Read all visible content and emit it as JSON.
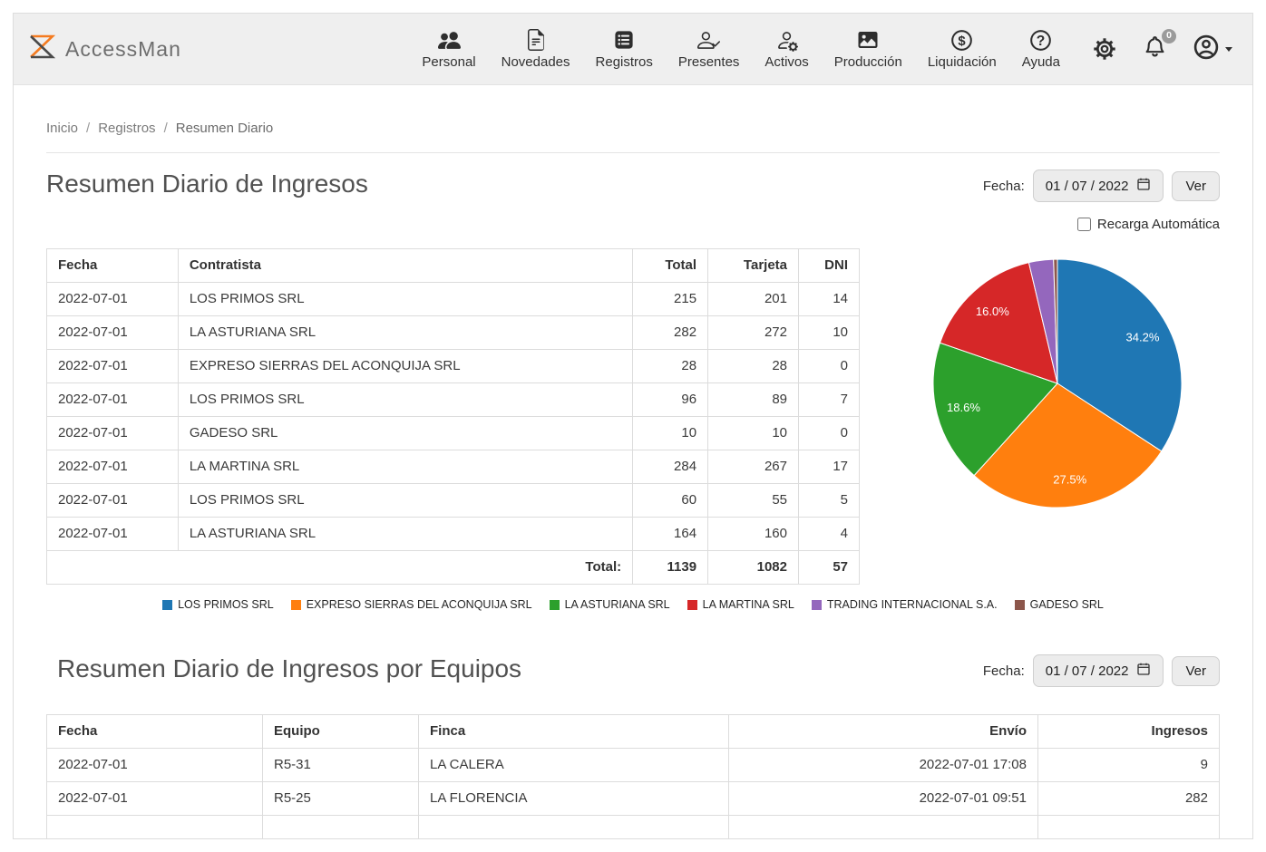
{
  "brand": {
    "name": "AccessMan"
  },
  "nav": {
    "items": [
      {
        "label": "Personal",
        "icon": "people-icon"
      },
      {
        "label": "Novedades",
        "icon": "file-text-icon"
      },
      {
        "label": "Registros",
        "icon": "list-square-icon"
      },
      {
        "label": "Presentes",
        "icon": "person-check-icon"
      },
      {
        "label": "Activos",
        "icon": "person-gear-icon"
      },
      {
        "label": "Producción",
        "icon": "image-icon"
      },
      {
        "label": "Liquidación",
        "icon": "dollar-circle-icon"
      },
      {
        "label": "Ayuda",
        "icon": "question-circle-icon"
      }
    ]
  },
  "topbar": {
    "settings_icon": "gear-icon",
    "notifications": {
      "icon": "bell-icon",
      "badge": "0"
    },
    "account": {
      "icon": "person-circle-icon"
    }
  },
  "breadcrumb": {
    "items": [
      "Inicio",
      "Registros",
      "Resumen Diario"
    ],
    "separator": "/"
  },
  "section_ingresos": {
    "title": "Resumen Diario de Ingresos",
    "fecha_label": "Fecha:",
    "fecha_value": "01 / 07 / 2022",
    "ver_label": "Ver",
    "recarga_label": "Recarga Automática",
    "recarga_checked": false,
    "table": {
      "columns": [
        "Fecha",
        "Contratista",
        "Total",
        "Tarjeta",
        "DNI"
      ],
      "rows": [
        [
          "2022-07-01",
          "LOS PRIMOS SRL",
          "215",
          "201",
          "14"
        ],
        [
          "2022-07-01",
          "LA ASTURIANA SRL",
          "282",
          "272",
          "10"
        ],
        [
          "2022-07-01",
          "EXPRESO SIERRAS DEL ACONQUIJA SRL",
          "28",
          "28",
          "0"
        ],
        [
          "2022-07-01",
          "LOS PRIMOS SRL",
          "96",
          "89",
          "7"
        ],
        [
          "2022-07-01",
          "GADESO SRL",
          "10",
          "10",
          "0"
        ],
        [
          "2022-07-01",
          "LA MARTINA SRL",
          "284",
          "267",
          "17"
        ],
        [
          "2022-07-01",
          "LOS PRIMOS SRL",
          "60",
          "55",
          "5"
        ],
        [
          "2022-07-01",
          "LA ASTURIANA SRL",
          "164",
          "160",
          "4"
        ]
      ],
      "total_row": {
        "label": "Total:",
        "values": [
          "1139",
          "1082",
          "57"
        ]
      }
    }
  },
  "chart_data": {
    "type": "pie",
    "labels": [
      "LOS PRIMOS SRL",
      "EXPRESO SIERRAS DEL ACONQUIJA SRL",
      "LA ASTURIANA SRL",
      "LA MARTINA SRL",
      "TRADING INTERNACIONAL S.A.",
      "GADESO SRL"
    ],
    "values": [
      34.2,
      27.5,
      18.6,
      16.0,
      3.2,
      0.5
    ],
    "unit": "%",
    "colors": [
      "#1f77b4",
      "#ff7f0e",
      "#2ca02c",
      "#d62728",
      "#9467bd",
      "#8c564b"
    ],
    "slice_labels": [
      "34.2%",
      "27.5%",
      "18.6%",
      "16.0%",
      "",
      ""
    ],
    "start_angle_deg": 0,
    "direction": "clockwise",
    "legend_position": "bottom"
  },
  "section_equipos": {
    "title": "Resumen Diario de Ingresos por Equipos",
    "fecha_label": "Fecha:",
    "fecha_value": "01 / 07 / 2022",
    "ver_label": "Ver",
    "table": {
      "columns": [
        "Fecha",
        "Equipo",
        "Finca",
        "Envío",
        "Ingresos"
      ],
      "rows": [
        [
          "2022-07-01",
          "R5-31",
          "LA CALERA",
          "2022-07-01 17:08",
          "9"
        ],
        [
          "2022-07-01",
          "R5-25",
          "LA FLORENCIA",
          "2022-07-01 09:51",
          "282"
        ],
        [
          "",
          "",
          "",
          "",
          ""
        ]
      ]
    }
  }
}
